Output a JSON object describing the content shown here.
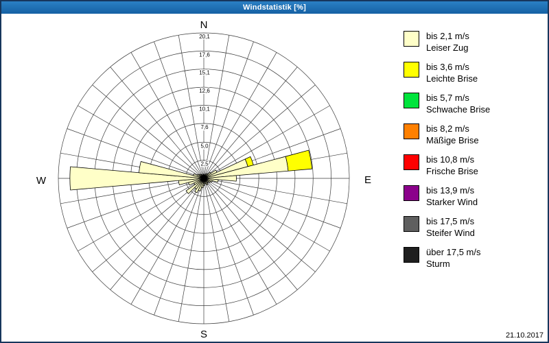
{
  "window": {
    "title": "Windstatistik [%]"
  },
  "footer": {
    "date": "21.10.2017"
  },
  "chart_data": {
    "type": "windrose",
    "title": "Windstatistik [%]",
    "value_unit": "%",
    "max_value": 20.1,
    "sector_width_deg": 10,
    "grid": true,
    "compass": {
      "n": "N",
      "e": "E",
      "s": "S",
      "w": "W"
    },
    "rings": [
      {
        "value": 2.5,
        "label": "2,5"
      },
      {
        "value": 5.0,
        "label": "5,0"
      },
      {
        "value": 7.6,
        "label": "7,6"
      },
      {
        "value": 10.1,
        "label": "10,1"
      },
      {
        "value": 12.6,
        "label": "12,6"
      },
      {
        "value": 15.1,
        "label": "15,1"
      },
      {
        "value": 17.6,
        "label": "17,6"
      },
      {
        "value": 20.1,
        "label": "20,1"
      }
    ],
    "speed_classes": [
      {
        "speed": "bis 2,1 m/s",
        "name": "Leiser Zug",
        "color": "#FFFFC8"
      },
      {
        "speed": "bis 3,6 m/s",
        "name": "Leichte Brise",
        "color": "#FFFF00"
      },
      {
        "speed": "bis 5,7 m/s",
        "name": "Schwache Brise",
        "color": "#00E43C"
      },
      {
        "speed": "bis 8,2 m/s",
        "name": "Mäßige Brise",
        "color": "#FF8000"
      },
      {
        "speed": "bis 10,8 m/s",
        "name": "Frische Brise",
        "color": "#FF0000"
      },
      {
        "speed": "bis 13,9 m/s",
        "name": "Starker Wind",
        "color": "#8B008B"
      },
      {
        "speed": "bis 17,5 m/s",
        "name": "Steifer Wind",
        "color": "#5F5F5F"
      },
      {
        "speed": "über 17,5 m/s",
        "name": "Sturm",
        "color": "#1F1F1F"
      }
    ],
    "petals": [
      {
        "dir": 0,
        "values": [
          0.6
        ]
      },
      {
        "dir": 10,
        "values": [
          0.5
        ]
      },
      {
        "dir": 20,
        "values": [
          0.5
        ]
      },
      {
        "dir": 30,
        "values": [
          0.7
        ]
      },
      {
        "dir": 40,
        "values": [
          0.8
        ]
      },
      {
        "dir": 50,
        "values": [
          1.2
        ]
      },
      {
        "dir": 60,
        "values": [
          2.0
        ]
      },
      {
        "dir": 70,
        "values": [
          6.3,
          0.8
        ]
      },
      {
        "dir": 80,
        "values": [
          11.7,
          3.3
        ]
      },
      {
        "dir": 90,
        "values": [
          4.5
        ]
      },
      {
        "dir": 100,
        "values": [
          2.0
        ]
      },
      {
        "dir": 110,
        "values": [
          1.2
        ]
      },
      {
        "dir": 120,
        "values": [
          1.0
        ]
      },
      {
        "dir": 130,
        "values": [
          0.8
        ]
      },
      {
        "dir": 140,
        "values": [
          0.8
        ]
      },
      {
        "dir": 150,
        "values": [
          1.0
        ]
      },
      {
        "dir": 160,
        "values": [
          0.8
        ]
      },
      {
        "dir": 170,
        "values": [
          0.7
        ]
      },
      {
        "dir": 180,
        "values": [
          1.0
        ]
      },
      {
        "dir": 190,
        "values": [
          1.3
        ]
      },
      {
        "dir": 200,
        "values": [
          1.8
        ]
      },
      {
        "dir": 210,
        "values": [
          2.2
        ]
      },
      {
        "dir": 220,
        "values": [
          1.8
        ]
      },
      {
        "dir": 230,
        "values": [
          3.0
        ]
      },
      {
        "dir": 240,
        "values": [
          1.5
        ]
      },
      {
        "dir": 250,
        "values": [
          2.2
        ]
      },
      {
        "dir": 260,
        "values": [
          3.5
        ]
      },
      {
        "dir": 270,
        "values": [
          18.5
        ]
      },
      {
        "dir": 280,
        "values": [
          9.0
        ]
      },
      {
        "dir": 290,
        "values": [
          1.5
        ]
      },
      {
        "dir": 300,
        "values": [
          1.0
        ]
      },
      {
        "dir": 310,
        "values": [
          0.8
        ]
      },
      {
        "dir": 320,
        "values": [
          0.7
        ]
      },
      {
        "dir": 330,
        "values": [
          0.6
        ]
      },
      {
        "dir": 340,
        "values": [
          0.5
        ]
      },
      {
        "dir": 350,
        "values": [
          0.5
        ]
      }
    ]
  }
}
